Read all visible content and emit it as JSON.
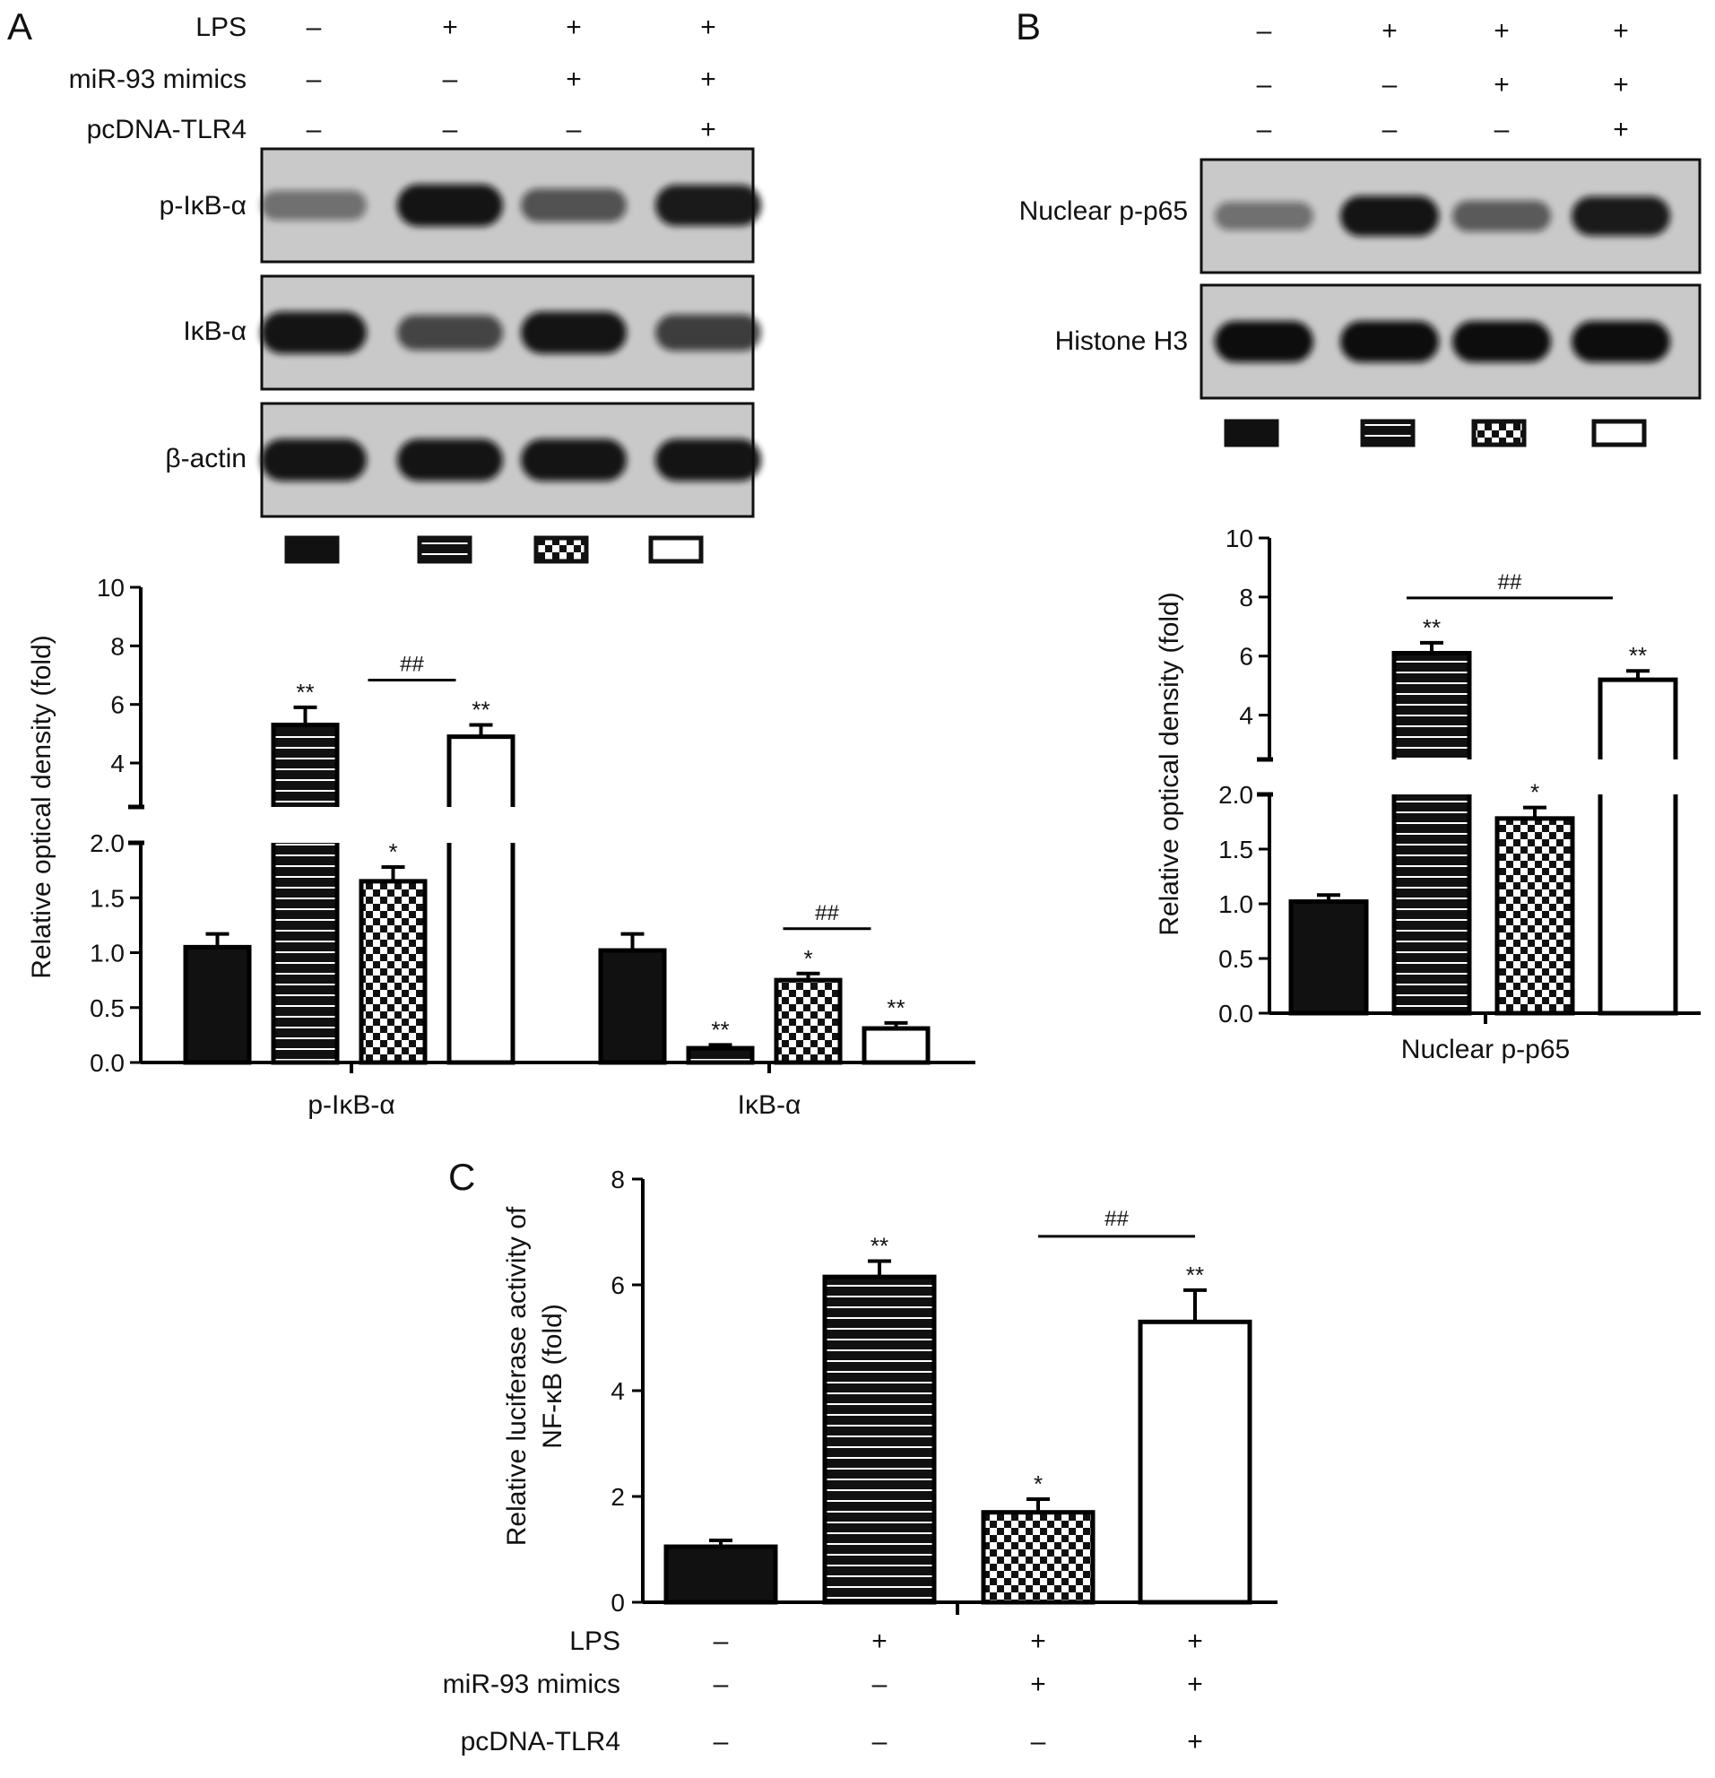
{
  "panel_labels": {
    "a": "A",
    "b": "B",
    "c": "C"
  },
  "colors": {
    "blot_bg": "#c9c9c9",
    "band": "#0b0b0b",
    "bar_fill": "#111111",
    "axis": "#000000"
  },
  "panel_a": {
    "conditions": [
      {
        "label": "LPS",
        "signs": [
          "–",
          "+",
          "+",
          "+"
        ]
      },
      {
        "label": "miR-93 mimics",
        "signs": [
          "–",
          "–",
          "+",
          "+"
        ]
      },
      {
        "label": "pcDNA-TLR4",
        "signs": [
          "–",
          "–",
          "–",
          "+"
        ]
      }
    ],
    "blots": [
      {
        "label": "p-IκB-α",
        "bands": [
          0.3,
          0.95,
          0.5,
          0.9
        ]
      },
      {
        "label": "IκB-α",
        "bands": [
          0.95,
          0.6,
          0.95,
          0.65
        ]
      },
      {
        "label": "β-actin",
        "bands": [
          0.95,
          0.95,
          0.95,
          0.95
        ]
      }
    ]
  },
  "panel_b": {
    "conditions": [
      {
        "signs": [
          "–",
          "+",
          "+",
          "+"
        ]
      },
      {
        "signs": [
          "–",
          "–",
          "+",
          "+"
        ]
      },
      {
        "signs": [
          "–",
          "–",
          "–",
          "+"
        ]
      }
    ],
    "blots": [
      {
        "label": "Nuclear p-p65",
        "bands": [
          0.3,
          0.95,
          0.45,
          0.9
        ]
      },
      {
        "label": "Histone H3",
        "bands": [
          1.0,
          1.0,
          1.0,
          1.0
        ]
      }
    ]
  },
  "panel_c": {
    "conditions": [
      {
        "label": "LPS",
        "signs": [
          "–",
          "+",
          "+",
          "+"
        ]
      },
      {
        "label": "miR-93 mimics",
        "signs": [
          "–",
          "–",
          "+",
          "+"
        ]
      },
      {
        "label": "pcDNA-TLR4",
        "signs": [
          "–",
          "–",
          "–",
          "+"
        ]
      }
    ]
  },
  "chart_data": [
    {
      "type": "bar",
      "ylabel": "Relative optical density (fold)",
      "categories": [
        "p-IκB-α",
        "IκB-α"
      ],
      "y_axis_break": {
        "lower": [
          0.0,
          2.0
        ],
        "upper": [
          2.5,
          10
        ]
      },
      "lower_ticks": [
        "0.0",
        "0.5",
        "1.0",
        "1.5",
        "2.0"
      ],
      "upper_ticks": [
        "4",
        "6",
        "8",
        "10"
      ],
      "pattern_order": [
        "solid",
        "horizontal-lines",
        "checkered",
        "open"
      ],
      "series": [
        {
          "values": [
            1.05,
            1.02
          ],
          "errors": [
            0.12,
            0.15
          ],
          "sig": [
            "",
            ""
          ]
        },
        {
          "values": [
            5.3,
            0.13
          ],
          "errors": [
            0.6,
            0.03
          ],
          "sig": [
            "**",
            "**"
          ]
        },
        {
          "values": [
            1.65,
            0.75
          ],
          "errors": [
            0.13,
            0.06
          ],
          "sig": [
            "*",
            "*"
          ]
        },
        {
          "values": [
            4.9,
            0.31
          ],
          "errors": [
            0.4,
            0.05
          ],
          "sig": [
            "**",
            "**"
          ]
        }
      ],
      "brackets": [
        {
          "group": 0,
          "from": 2,
          "to": 3,
          "label": "##"
        },
        {
          "group": 1,
          "from": 2,
          "to": 3,
          "label": "##"
        }
      ]
    },
    {
      "type": "bar",
      "ylabel": "Relative optical density (fold)",
      "categories": [
        "Nuclear p-p65"
      ],
      "y_axis_break": {
        "lower": [
          0.0,
          2.0
        ],
        "upper": [
          2.5,
          10
        ]
      },
      "lower_ticks": [
        "0.0",
        "0.5",
        "1.0",
        "1.5",
        "2.0"
      ],
      "upper_ticks": [
        "4",
        "6",
        "8",
        "10"
      ],
      "pattern_order": [
        "solid",
        "horizontal-lines",
        "checkered",
        "open"
      ],
      "series": [
        {
          "values": [
            1.02
          ],
          "errors": [
            0.06
          ],
          "sig": [
            ""
          ]
        },
        {
          "values": [
            6.1
          ],
          "errors": [
            0.35
          ],
          "sig": [
            "**"
          ]
        },
        {
          "values": [
            1.78
          ],
          "errors": [
            0.1
          ],
          "sig": [
            "*"
          ]
        },
        {
          "values": [
            5.2
          ],
          "errors": [
            0.3
          ],
          "sig": [
            "**"
          ]
        }
      ],
      "brackets": [
        {
          "group": 0,
          "from": 1,
          "to": 3,
          "label": "##"
        }
      ]
    },
    {
      "type": "bar",
      "ylabel_lines": [
        "Relative luciferase activity of",
        "NF-κB (fold)"
      ],
      "ylim": [
        0,
        8
      ],
      "y_ticks": [
        "0",
        "2",
        "4",
        "6",
        "8"
      ],
      "pattern_order": [
        "solid",
        "horizontal-lines",
        "checkered",
        "open"
      ],
      "values": [
        1.05,
        6.15,
        1.7,
        5.3
      ],
      "errors": [
        0.12,
        0.3,
        0.25,
        0.6
      ],
      "sig": [
        "",
        "**",
        "*",
        "**"
      ],
      "brackets": [
        {
          "from": 2,
          "to": 3,
          "label": "##"
        }
      ]
    }
  ]
}
